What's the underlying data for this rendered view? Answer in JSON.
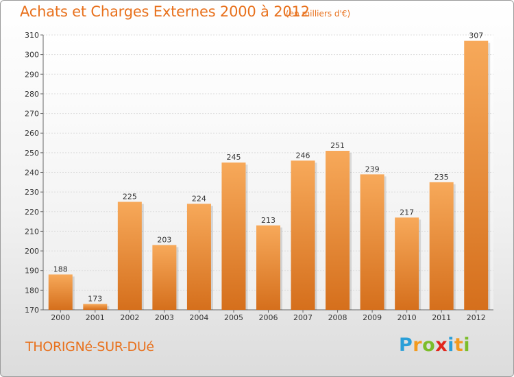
{
  "title": "Achats et Charges Externes 2000 à 2012",
  "subtitle": "(en milliers d'€)",
  "city": "THORIGNé-SUR-DUé",
  "brand": {
    "letters": [
      "P",
      "r",
      "o",
      "x",
      "i",
      "t",
      "i"
    ],
    "colors": [
      "#2a9fd8",
      "#f39a1e",
      "#7cbd2a",
      "#e2261c",
      "#2a9fd8",
      "#f39a1e",
      "#7cbd2a"
    ]
  },
  "colors": {
    "accent": "#e8711d",
    "bar_top": "#f7a95a",
    "bar_bottom": "#d56f1c",
    "grid": "#dddddd"
  },
  "chart_data": {
    "type": "bar",
    "title": "Achats et Charges Externes 2000 à 2012",
    "subtitle": "(en milliers d'€)",
    "categories": [
      "2000",
      "2001",
      "2002",
      "2003",
      "2004",
      "2005",
      "2006",
      "2007",
      "2008",
      "2009",
      "2010",
      "2011",
      "2012"
    ],
    "values": [
      188,
      173,
      225,
      203,
      224,
      245,
      213,
      246,
      251,
      239,
      217,
      235,
      307
    ],
    "ylim": [
      170,
      310
    ],
    "yticks": [
      170,
      180,
      190,
      200,
      210,
      220,
      230,
      240,
      250,
      260,
      270,
      280,
      290,
      300,
      310
    ],
    "grid": true,
    "legend": "none"
  }
}
